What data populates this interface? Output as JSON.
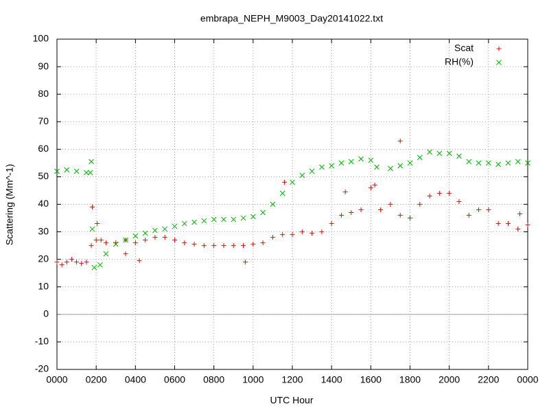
{
  "chart_data": {
    "type": "scatter",
    "title": "embrapa_NEPH_M9003_Day20141022.txt",
    "x_label": "UTC Hour",
    "y_label": "Scattering (Mm^-1)",
    "xlim": [
      0,
      24
    ],
    "xticks": [
      {
        "value": 0,
        "label": "0000"
      },
      {
        "value": 2,
        "label": "0200"
      },
      {
        "value": 4,
        "label": "0400"
      },
      {
        "value": 6,
        "label": "0600"
      },
      {
        "value": 8,
        "label": "0800"
      },
      {
        "value": 10,
        "label": "1000"
      },
      {
        "value": 12,
        "label": "1200"
      },
      {
        "value": 14,
        "label": "1400"
      },
      {
        "value": 16,
        "label": "1600"
      },
      {
        "value": 18,
        "label": "1800"
      },
      {
        "value": 20,
        "label": "2000"
      },
      {
        "value": 22,
        "label": "2200"
      },
      {
        "value": 24,
        "label": "0000"
      }
    ],
    "ylim": [
      -20,
      100
    ],
    "yticks": [
      -20,
      -10,
      0,
      10,
      20,
      30,
      40,
      50,
      60,
      70,
      80,
      90,
      100
    ],
    "grid": true,
    "legend": "top-right",
    "series": [
      {
        "name": "Scat",
        "color": "#ff0000",
        "marker": "plus",
        "x": [
          0,
          0.25,
          0.5,
          0.75,
          1,
          1.25,
          1.5,
          1.75,
          1.8,
          2,
          2.05,
          2.25,
          2.5,
          3,
          3.5,
          3.5,
          4,
          4.2,
          4.5,
          5,
          5.5,
          6,
          6.5,
          7,
          7.5,
          8,
          8.5,
          9,
          9.5,
          9.6,
          10,
          10.5,
          11,
          11.5,
          11.6,
          12,
          12.5,
          13,
          13.5,
          14,
          14.5,
          14.7,
          15,
          15.5,
          16,
          16.2,
          16.5,
          17,
          17.5,
          17.5,
          18,
          18.5,
          19,
          19.5,
          20,
          20.5,
          21,
          21.5,
          22,
          22.5,
          23,
          23.5,
          23.6,
          24
        ],
        "values": [
          19,
          18,
          19,
          20,
          19,
          18.5,
          19,
          25,
          39,
          27,
          33,
          27,
          26,
          26,
          27,
          22,
          26,
          19.5,
          27,
          28,
          28,
          27,
          26,
          25.5,
          25,
          25,
          25,
          25,
          25,
          19,
          25.5,
          26,
          28,
          29,
          48,
          29,
          30,
          29.5,
          30,
          33,
          36,
          44.5,
          37,
          38,
          46,
          47,
          38,
          40,
          36,
          63,
          35,
          40,
          43,
          44,
          44,
          41,
          36,
          38,
          38,
          33,
          33,
          31,
          36.5,
          32.5
        ]
      },
      {
        "name": "RH(%)",
        "color": "#00b000",
        "marker": "cross",
        "x": [
          0,
          0.5,
          1,
          1.5,
          1.7,
          1.75,
          1.8,
          1.9,
          2.2,
          2.5,
          3,
          3.5,
          4,
          4.5,
          5,
          5.5,
          6,
          6.5,
          7,
          7.5,
          8,
          8.5,
          9,
          9.5,
          10,
          10.5,
          11,
          11.5,
          12,
          12.5,
          13,
          13.5,
          14,
          14.5,
          15,
          15.5,
          16,
          16.3,
          17,
          17.5,
          18,
          18.5,
          19,
          19.5,
          20,
          20.5,
          21,
          21.5,
          22,
          22.5,
          23,
          23.5,
          24
        ],
        "values": [
          52,
          52.5,
          52,
          51.5,
          51.5,
          55.5,
          31,
          17,
          18,
          22,
          25.5,
          27,
          28.5,
          29.5,
          30.5,
          31,
          32,
          33,
          33.5,
          34,
          34.5,
          34.5,
          34.5,
          35,
          35.5,
          37,
          40,
          44,
          48,
          50.5,
          52,
          53.5,
          54,
          55,
          55.5,
          56.5,
          56,
          53.5,
          53,
          54,
          55,
          57,
          59,
          58.5,
          58.5,
          57.5,
          55.5,
          55,
          55,
          54.5,
          55,
          55.5,
          55
        ]
      }
    ]
  }
}
